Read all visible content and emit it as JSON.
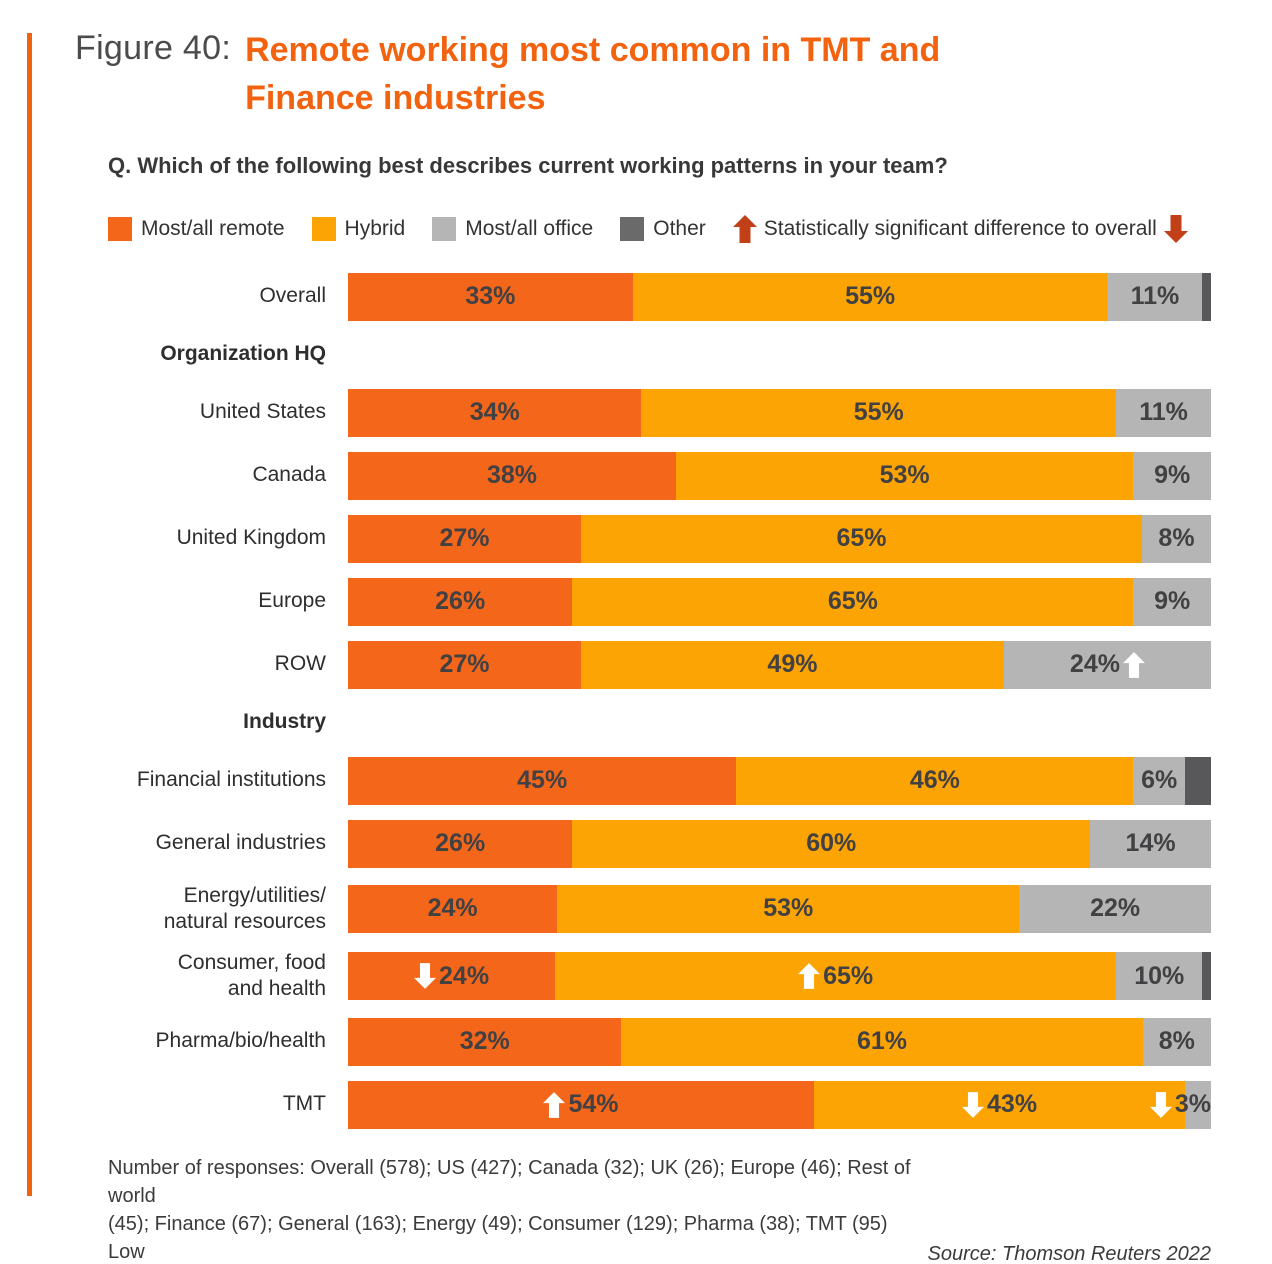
{
  "page": {
    "figure_label": "Figure 40:",
    "title_line1": "Remote working most common in TMT and",
    "title_line2": "Finance industries",
    "question": "Q. Which of the following best describes current working patterns in your team?",
    "footnote": "Number of responses: Overall (578); US (427); Canada (32); UK (26); Europe (46); Rest of world\n(45); Finance (67); General (163); Energy (49); Consumer (129); Pharma (38); TMT (95) Low",
    "source": "Source: Thomson Reuters 2022"
  },
  "colors": {
    "title_orange": "#F2620F",
    "accent_line": "#EE6310",
    "value_text": "#414042",
    "in_bar_arrow": "#FFFFFF"
  },
  "legend": {
    "items": [
      {
        "key": "remote",
        "label": "Most/all remote",
        "color": "#F4661A"
      },
      {
        "key": "hybrid",
        "label": "Hybrid",
        "color": "#FCA404"
      },
      {
        "key": "office",
        "label": "Most/all office",
        "color": "#B5B5B5"
      },
      {
        "key": "other",
        "label": "Other",
        "color": "#6A6A6A"
      }
    ],
    "significance_label": "Statistically significant difference to overall",
    "significance_color": "#C24018"
  },
  "chart_data": {
    "type": "bar",
    "orientation": "horizontal-stacked",
    "unit": "%",
    "series_keys": [
      "Most/all remote",
      "Hybrid",
      "Most/all office",
      "Other"
    ],
    "colors": {
      "remote": "#F4661A",
      "hybrid": "#FCA404",
      "office": "#B5B5B5",
      "other": "#58585A"
    },
    "rows": [
      {
        "kind": "bar",
        "label": "Overall",
        "segments": [
          {
            "key": "remote",
            "value": 33,
            "text": "33%"
          },
          {
            "key": "hybrid",
            "value": 55,
            "text": "55%"
          },
          {
            "key": "office",
            "value": 11,
            "text": "11%"
          },
          {
            "key": "other",
            "value": 1,
            "text": ""
          }
        ]
      },
      {
        "kind": "section",
        "label": "Organization HQ"
      },
      {
        "kind": "bar",
        "label": "United States",
        "segments": [
          {
            "key": "remote",
            "value": 34,
            "text": "34%"
          },
          {
            "key": "hybrid",
            "value": 55,
            "text": "55%"
          },
          {
            "key": "office",
            "value": 11,
            "text": "11%"
          }
        ]
      },
      {
        "kind": "bar",
        "label": "Canada",
        "segments": [
          {
            "key": "remote",
            "value": 38,
            "text": "38%"
          },
          {
            "key": "hybrid",
            "value": 53,
            "text": "53%"
          },
          {
            "key": "office",
            "value": 9,
            "text": "9%"
          }
        ]
      },
      {
        "kind": "bar",
        "label": "United Kingdom",
        "segments": [
          {
            "key": "remote",
            "value": 27,
            "text": "27%"
          },
          {
            "key": "hybrid",
            "value": 65,
            "text": "65%"
          },
          {
            "key": "office",
            "value": 8,
            "text": "8%"
          }
        ]
      },
      {
        "kind": "bar",
        "label": "Europe",
        "segments": [
          {
            "key": "remote",
            "value": 26,
            "text": "26%"
          },
          {
            "key": "hybrid",
            "value": 65,
            "text": "65%"
          },
          {
            "key": "office",
            "value": 9,
            "text": "9%"
          }
        ]
      },
      {
        "kind": "bar",
        "label": "ROW",
        "segments": [
          {
            "key": "remote",
            "value": 27,
            "text": "27%"
          },
          {
            "key": "hybrid",
            "value": 49,
            "text": "49%"
          },
          {
            "key": "office",
            "value": 24,
            "text": "24%",
            "arrow": "up",
            "arrow_side": "right"
          }
        ]
      },
      {
        "kind": "section",
        "label": "Industry"
      },
      {
        "kind": "bar",
        "label": "Financial institutions",
        "segments": [
          {
            "key": "remote",
            "value": 45,
            "text": "45%"
          },
          {
            "key": "hybrid",
            "value": 46,
            "text": "46%"
          },
          {
            "key": "office",
            "value": 6,
            "text": "6%"
          },
          {
            "key": "other",
            "value": 3,
            "text": ""
          }
        ]
      },
      {
        "kind": "bar",
        "label": "General industries",
        "segments": [
          {
            "key": "remote",
            "value": 26,
            "text": "26%"
          },
          {
            "key": "hybrid",
            "value": 60,
            "text": "60%"
          },
          {
            "key": "office",
            "value": 14,
            "text": "14%"
          }
        ]
      },
      {
        "kind": "bar",
        "label": "Energy/utilities/\nnatural resources",
        "segments": [
          {
            "key": "remote",
            "value": 24,
            "text": "24%"
          },
          {
            "key": "hybrid",
            "value": 53,
            "text": "53%"
          },
          {
            "key": "office",
            "value": 22,
            "text": "22%"
          }
        ]
      },
      {
        "kind": "bar",
        "label": "Consumer, food\nand health",
        "segments": [
          {
            "key": "remote",
            "value": 24,
            "text": "24%",
            "arrow": "down",
            "arrow_side": "left"
          },
          {
            "key": "hybrid",
            "value": 65,
            "text": "65%",
            "arrow": "up",
            "arrow_side": "left"
          },
          {
            "key": "office",
            "value": 10,
            "text": "10%"
          },
          {
            "key": "other",
            "value": 1,
            "text": ""
          }
        ]
      },
      {
        "kind": "bar",
        "label": "Pharma/bio/health",
        "segments": [
          {
            "key": "remote",
            "value": 32,
            "text": "32%"
          },
          {
            "key": "hybrid",
            "value": 61,
            "text": "61%"
          },
          {
            "key": "office",
            "value": 8,
            "text": "8%"
          }
        ]
      },
      {
        "kind": "bar",
        "label": "TMT",
        "segments": [
          {
            "key": "remote",
            "value": 54,
            "text": "54%",
            "arrow": "up",
            "arrow_side": "left"
          },
          {
            "key": "hybrid",
            "value": 43,
            "text": "43%",
            "arrow": "down",
            "arrow_side": "left"
          },
          {
            "key": "office",
            "value": 3,
            "text": "3%",
            "arrow": "down",
            "arrow_side": "left",
            "overflow": "left"
          }
        ]
      }
    ]
  }
}
